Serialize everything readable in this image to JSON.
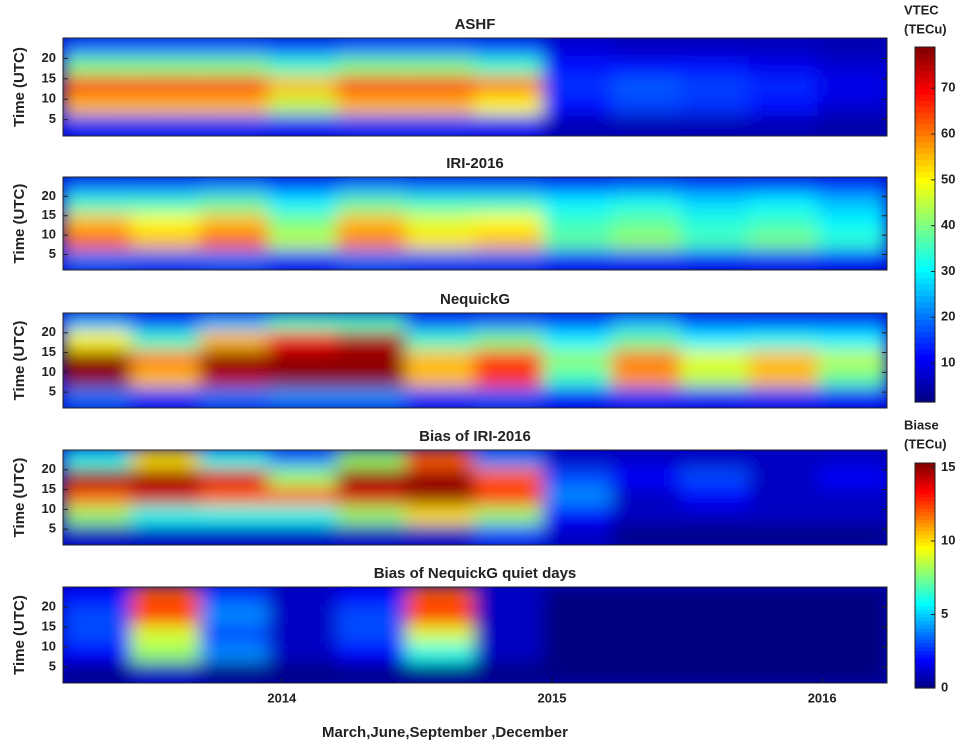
{
  "chart_data": [
    {
      "type": "heatmap",
      "title": "ASHF",
      "ylabel": "Time (UTC)",
      "colorbar": 0,
      "xlim": [
        2013.19,
        2016.24
      ],
      "ylim": [
        1,
        25
      ],
      "yticks": [
        5,
        10,
        15,
        20
      ],
      "z": [
        [
          20,
          20,
          20,
          18,
          20,
          20,
          18,
          8,
          6,
          6,
          6,
          5
        ],
        [
          40,
          40,
          40,
          35,
          40,
          40,
          35,
          12,
          12,
          12,
          10,
          8
        ],
        [
          65,
          65,
          65,
          55,
          65,
          65,
          60,
          15,
          18,
          16,
          14,
          10
        ],
        [
          55,
          55,
          55,
          45,
          55,
          55,
          50,
          12,
          16,
          15,
          12,
          8
        ],
        [
          15,
          15,
          15,
          12,
          15,
          15,
          12,
          5,
          5,
          5,
          5,
          4
        ]
      ]
    },
    {
      "type": "heatmap",
      "title": "IRI-2016",
      "ylabel": "Time (UTC)",
      "colorbar": 0,
      "xlim": [
        2013.19,
        2016.24
      ],
      "ylim": [
        1,
        25
      ],
      "yticks": [
        5,
        10,
        15,
        20
      ],
      "z": [
        [
          20,
          20,
          22,
          18,
          22,
          20,
          20,
          18,
          20,
          18,
          18,
          16
        ],
        [
          35,
          35,
          38,
          30,
          38,
          35,
          35,
          30,
          32,
          28,
          30,
          26
        ],
        [
          55,
          50,
          55,
          40,
          55,
          48,
          50,
          35,
          38,
          33,
          35,
          30
        ],
        [
          62,
          55,
          62,
          45,
          60,
          52,
          55,
          38,
          42,
          36,
          40,
          34
        ],
        [
          20,
          18,
          20,
          15,
          20,
          18,
          18,
          14,
          15,
          13,
          14,
          12
        ]
      ]
    },
    {
      "type": "heatmap",
      "title": "NequickG",
      "ylabel": "Time (UTC)",
      "colorbar": 0,
      "xlim": [
        2013.19,
        2016.24
      ],
      "ylim": [
        1,
        25
      ],
      "yticks": [
        5,
        10,
        15,
        20
      ],
      "z": [
        [
          25,
          18,
          25,
          35,
          35,
          18,
          20,
          18,
          25,
          18,
          18,
          18
        ],
        [
          50,
          35,
          55,
          70,
          75,
          35,
          40,
          30,
          38,
          30,
          32,
          30
        ],
        [
          78,
          60,
          78,
          78,
          78,
          55,
          65,
          42,
          60,
          48,
          55,
          45
        ],
        [
          78,
          55,
          75,
          78,
          78,
          55,
          65,
          35,
          58,
          45,
          55,
          38
        ],
        [
          20,
          15,
          20,
          22,
          22,
          15,
          18,
          12,
          15,
          12,
          14,
          12
        ]
      ]
    },
    {
      "type": "heatmap",
      "title": "Bias of IRI-2016",
      "ylabel": "Time (UTC)",
      "colorbar": 1,
      "xlim": [
        2013.19,
        2016.24
      ],
      "ylim": [
        1,
        25
      ],
      "yticks": [
        5,
        10,
        15,
        20
      ],
      "z": [
        [
          6,
          10,
          6,
          4,
          8,
          12,
          4,
          1,
          1,
          1,
          1,
          1
        ],
        [
          15,
          15,
          14,
          8,
          15,
          15,
          12,
          3,
          2,
          3,
          1,
          2
        ],
        [
          12,
          14,
          12,
          12,
          14,
          15,
          13,
          4,
          1,
          2,
          1,
          1
        ],
        [
          8,
          6,
          6,
          6,
          8,
          10,
          8,
          2,
          1,
          1,
          1,
          1
        ],
        [
          1,
          1,
          1,
          1,
          1,
          1,
          3,
          1,
          0,
          0,
          0,
          0
        ]
      ]
    },
    {
      "type": "heatmap",
      "title": "Bias of NequickG quiet days",
      "ylabel": "Time (UTC)",
      "colorbar": 1,
      "xlabel": "March,June,September ,December",
      "xlim": [
        2013.19,
        2016.24
      ],
      "xticks": [
        2014,
        2015,
        2016
      ],
      "ylim": [
        1,
        25
      ],
      "yticks": [
        5,
        10,
        15,
        20
      ],
      "z": [
        [
          2,
          12,
          3,
          1,
          2,
          12,
          1,
          0,
          0,
          0,
          0,
          0
        ],
        [
          3,
          13,
          4,
          1,
          3,
          13,
          1,
          0,
          0,
          0,
          0,
          0
        ],
        [
          3,
          9,
          3,
          1,
          3,
          9,
          1,
          0,
          0,
          0,
          0,
          0
        ],
        [
          2,
          8,
          4,
          1,
          2,
          6,
          1,
          0,
          0,
          0,
          0,
          0
        ],
        [
          0,
          1,
          0,
          0,
          0,
          0,
          0,
          0,
          0,
          0,
          0,
          0
        ]
      ]
    }
  ],
  "colorbars": [
    {
      "title": [
        "VTEC",
        "(TECu)"
      ],
      "colormap": "jet",
      "clim": [
        1.5,
        79
      ],
      "ticks": [
        10,
        20,
        30,
        40,
        50,
        60,
        70
      ]
    },
    {
      "title": [
        "Biase",
        "(TECu)"
      ],
      "colormap": "jet",
      "clim": [
        0,
        15.3
      ],
      "ticks": [
        0,
        5,
        10,
        15
      ]
    }
  ]
}
